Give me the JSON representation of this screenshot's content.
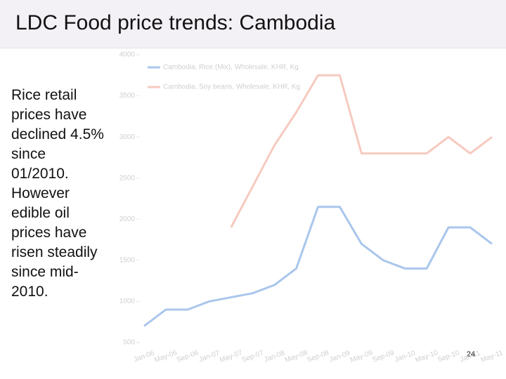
{
  "title": "LDC Food price trends: Cambodia",
  "body": "Rice retail prices have declined 4.5% since 01/2010. However edible oil prices have risen steadily since mid-2010.",
  "page_number": "24",
  "chart_data": {
    "type": "line",
    "categories": [
      "Jan-06",
      "May-06",
      "Sep-06",
      "Jan-07",
      "May-07",
      "Sep-07",
      "Jan-08",
      "May-08",
      "Sep-08",
      "Jan-09",
      "May-09",
      "Sep-09",
      "Jan-10",
      "May-10",
      "Sep-10",
      "Jan-11",
      "May-11"
    ],
    "series": [
      {
        "name": "Cambodia, Rice (Mix), Wholesale, KHR, Kg",
        "color": "#aac6ec",
        "values": [
          700,
          900,
          900,
          1000,
          1050,
          1100,
          1200,
          1400,
          2150,
          2150,
          1700,
          1500,
          1400,
          1400,
          1900,
          1900,
          1700
        ]
      },
      {
        "name": "Cambodia, Soy beans, Wholesale, KHR, Kg",
        "color": "#f6cabf",
        "values": [
          null,
          null,
          null,
          null,
          1900,
          2400,
          2900,
          3300,
          3750,
          3750,
          2800,
          2800,
          2800,
          2800,
          3000,
          2800,
          3000
        ]
      }
    ],
    "ylim": [
      500,
      4000
    ],
    "yticks": [
      500,
      1000,
      1500,
      2000,
      2500,
      3000,
      3500,
      4000
    ]
  }
}
